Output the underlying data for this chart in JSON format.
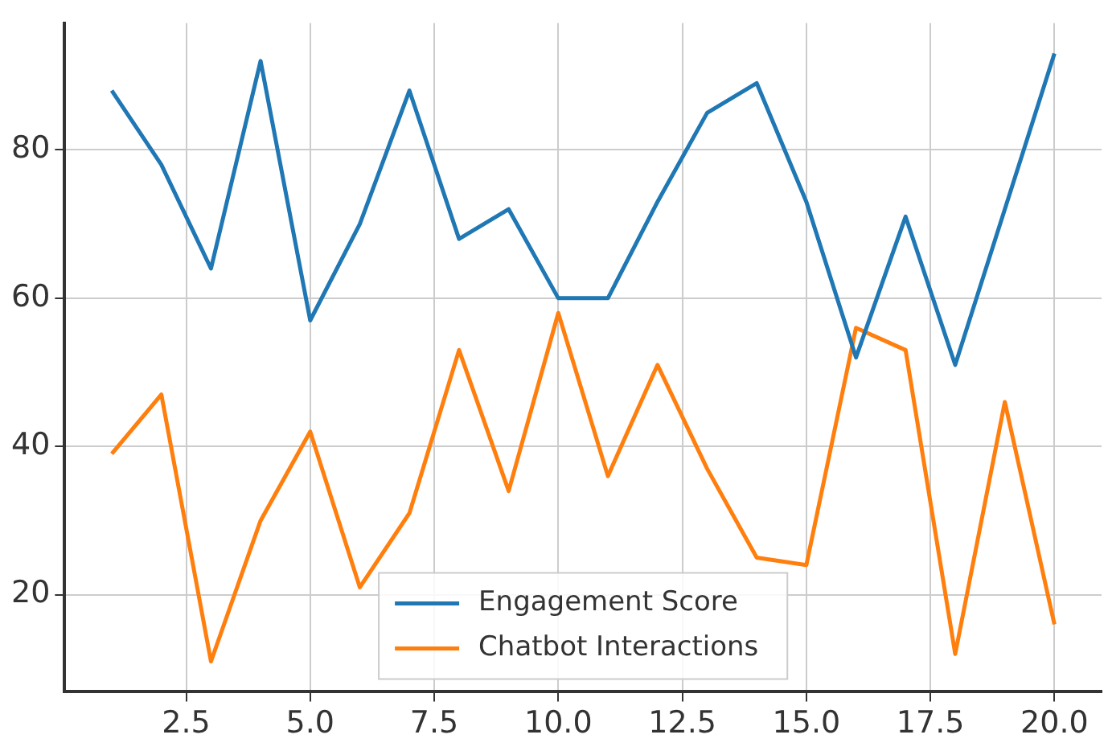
{
  "chart_data": {
    "type": "line",
    "x": [
      1,
      2,
      3,
      4,
      5,
      6,
      7,
      8,
      9,
      10,
      11,
      12,
      13,
      14,
      15,
      16,
      17,
      18,
      19,
      20
    ],
    "series": [
      {
        "name": "Engagement Score",
        "color": "#1f77b4",
        "values": [
          88,
          78,
          64,
          92,
          57,
          70,
          88,
          68,
          72,
          60,
          60,
          73,
          85,
          89,
          73,
          52,
          71,
          51,
          72,
          93
        ]
      },
      {
        "name": "Chatbot Interactions",
        "color": "#ff7f0e",
        "values": [
          39,
          47,
          11,
          30,
          42,
          21,
          31,
          53,
          34,
          58,
          36,
          51,
          37,
          25,
          24,
          56,
          53,
          12,
          46,
          16
        ]
      }
    ],
    "xlim": [
      0.05,
      20.95
    ],
    "xticks": [
      {
        "value": 2.5,
        "label": "2.5"
      },
      {
        "value": 5,
        "label": "5.0"
      },
      {
        "value": 7.5,
        "label": "7.5"
      },
      {
        "value": 10,
        "label": "10.0"
      },
      {
        "value": 12.5,
        "label": "12.5"
      },
      {
        "value": 15,
        "label": "15.0"
      },
      {
        "value": 17.5,
        "label": "17.5"
      },
      {
        "value": 20,
        "label": "20.0"
      }
    ],
    "ylim": [
      6.9,
      97.1
    ],
    "yticks": [
      20,
      40,
      60,
      80
    ],
    "grid": true,
    "legend": "bottom",
    "marker": "none",
    "line_style": "solid"
  }
}
